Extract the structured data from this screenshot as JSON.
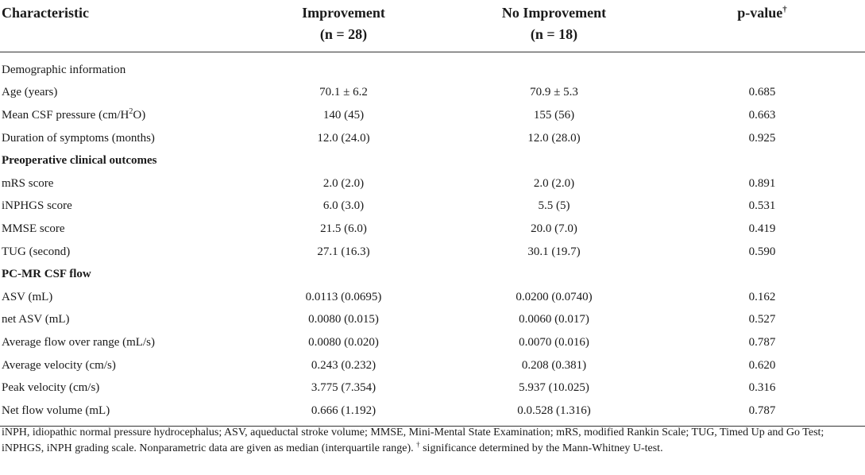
{
  "header": {
    "characteristic": "Characteristic",
    "improvement": "Improvement",
    "improvement_n": "(n = 28)",
    "no_improvement": "No Improvement",
    "no_improvement_n": "(n = 18)",
    "pvalue": "p-value",
    "pvalue_mark": "†"
  },
  "rows": [
    {
      "label": "Demographic information",
      "section": true,
      "plain": true
    },
    {
      "label": "Age (years)",
      "imp": "70.1 ± 6.2",
      "noimp": "70.9 ± 5.3",
      "p": "0.685"
    },
    {
      "label_pre": "Mean CSF pressure (cm/H",
      "label_sup": "2",
      "label_post": "O)",
      "imp": "140 (45)",
      "noimp": "155 (56)",
      "p": "0.663"
    },
    {
      "label": "Duration of symptoms (months)",
      "imp": "12.0 (24.0)",
      "noimp": "12.0 (28.0)",
      "p": "0.925"
    },
    {
      "label": "Preoperative clinical outcomes",
      "section": true
    },
    {
      "label": "mRS score",
      "imp": "2.0 (2.0)",
      "noimp": "2.0 (2.0)",
      "p": "0.891"
    },
    {
      "label": "iNPHGS score",
      "imp": "6.0 (3.0)",
      "noimp": "5.5 (5)",
      "p": "0.531"
    },
    {
      "label": "MMSE score",
      "imp": "21.5 (6.0)",
      "noimp": "20.0 (7.0)",
      "p": "0.419"
    },
    {
      "label": "TUG (second)",
      "imp": "27.1 (16.3)",
      "noimp": "30.1 (19.7)",
      "p": "0.590"
    },
    {
      "label": "PC-MR CSF flow",
      "section": true
    },
    {
      "label": "ASV (mL)",
      "imp": "0.0113 (0.0695)",
      "noimp": "0.0200 (0.0740)",
      "p": "0.162"
    },
    {
      "label": "net ASV (mL)",
      "imp": "0.0080 (0.015)",
      "noimp": "0.0060 (0.017)",
      "p": "0.527"
    },
    {
      "label": "Average flow over range (mL/s)",
      "imp": "0.0080 (0.020)",
      "noimp": "0.0070 (0.016)",
      "p": "0.787"
    },
    {
      "label": "Average velocity (cm/s)",
      "imp": "0.243 (0.232)",
      "noimp": "0.208 (0.381)",
      "p": "0.620"
    },
    {
      "label": "Peak velocity (cm/s)",
      "imp": "3.775 (7.354)",
      "noimp": "5.937 (10.025)",
      "p": "0.316"
    },
    {
      "label": "Net flow volume (mL)",
      "imp": "0.666 (1.192)",
      "noimp": "0.0.528 (1.316)",
      "p": "0.787"
    }
  ],
  "footnote": {
    "text_main": "iNPH, idiopathic normal pressure hydrocephalus; ASV, aqueductal stroke volume; MMSE, Mini-Mental State Examination; mRS, modified Rankin Scale; TUG, Timed Up and Go Test; iNPHGS, iNPH grading scale. Nonparametric data are given as median (interquartile range). ",
    "dagger": "†",
    "text_end": " significance determined by the Mann-Whitney U-test."
  }
}
